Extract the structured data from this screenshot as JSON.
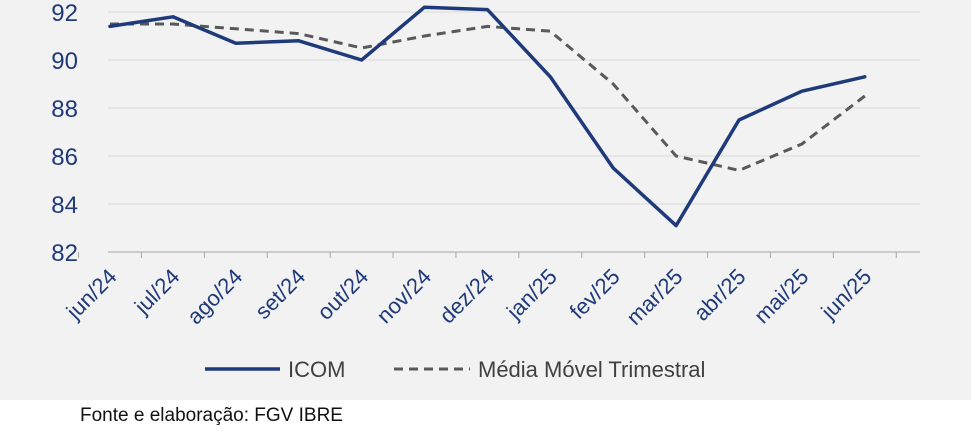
{
  "chart_data": {
    "type": "line",
    "categories": [
      "jun/24",
      "jul/24",
      "ago/24",
      "set/24",
      "out/24",
      "nov/24",
      "dez/24",
      "jan/25",
      "fev/25",
      "mar/25",
      "abr/25",
      "mai/25",
      "jun/25"
    ],
    "series": [
      {
        "name": "ICOM",
        "values": [
          91.4,
          91.8,
          90.7,
          90.8,
          90.0,
          92.2,
          92.1,
          89.3,
          85.5,
          83.1,
          87.5,
          88.7,
          89.3
        ],
        "color": "#1f3a7a",
        "style": "solid"
      },
      {
        "name": "Média Móvel Trimestral",
        "values": [
          91.5,
          91.5,
          91.3,
          91.1,
          90.5,
          91.0,
          91.4,
          91.2,
          89.0,
          86.0,
          85.4,
          86.5,
          88.5
        ],
        "color": "#595959",
        "style": "dashed"
      }
    ],
    "y_ticks": [
      82,
      84,
      86,
      88,
      90,
      92
    ],
    "ylim": [
      82,
      92
    ],
    "grid": true,
    "legend_position": "bottom"
  },
  "footer": {
    "source": "Fonte e elaboração: FGV IBRE"
  }
}
